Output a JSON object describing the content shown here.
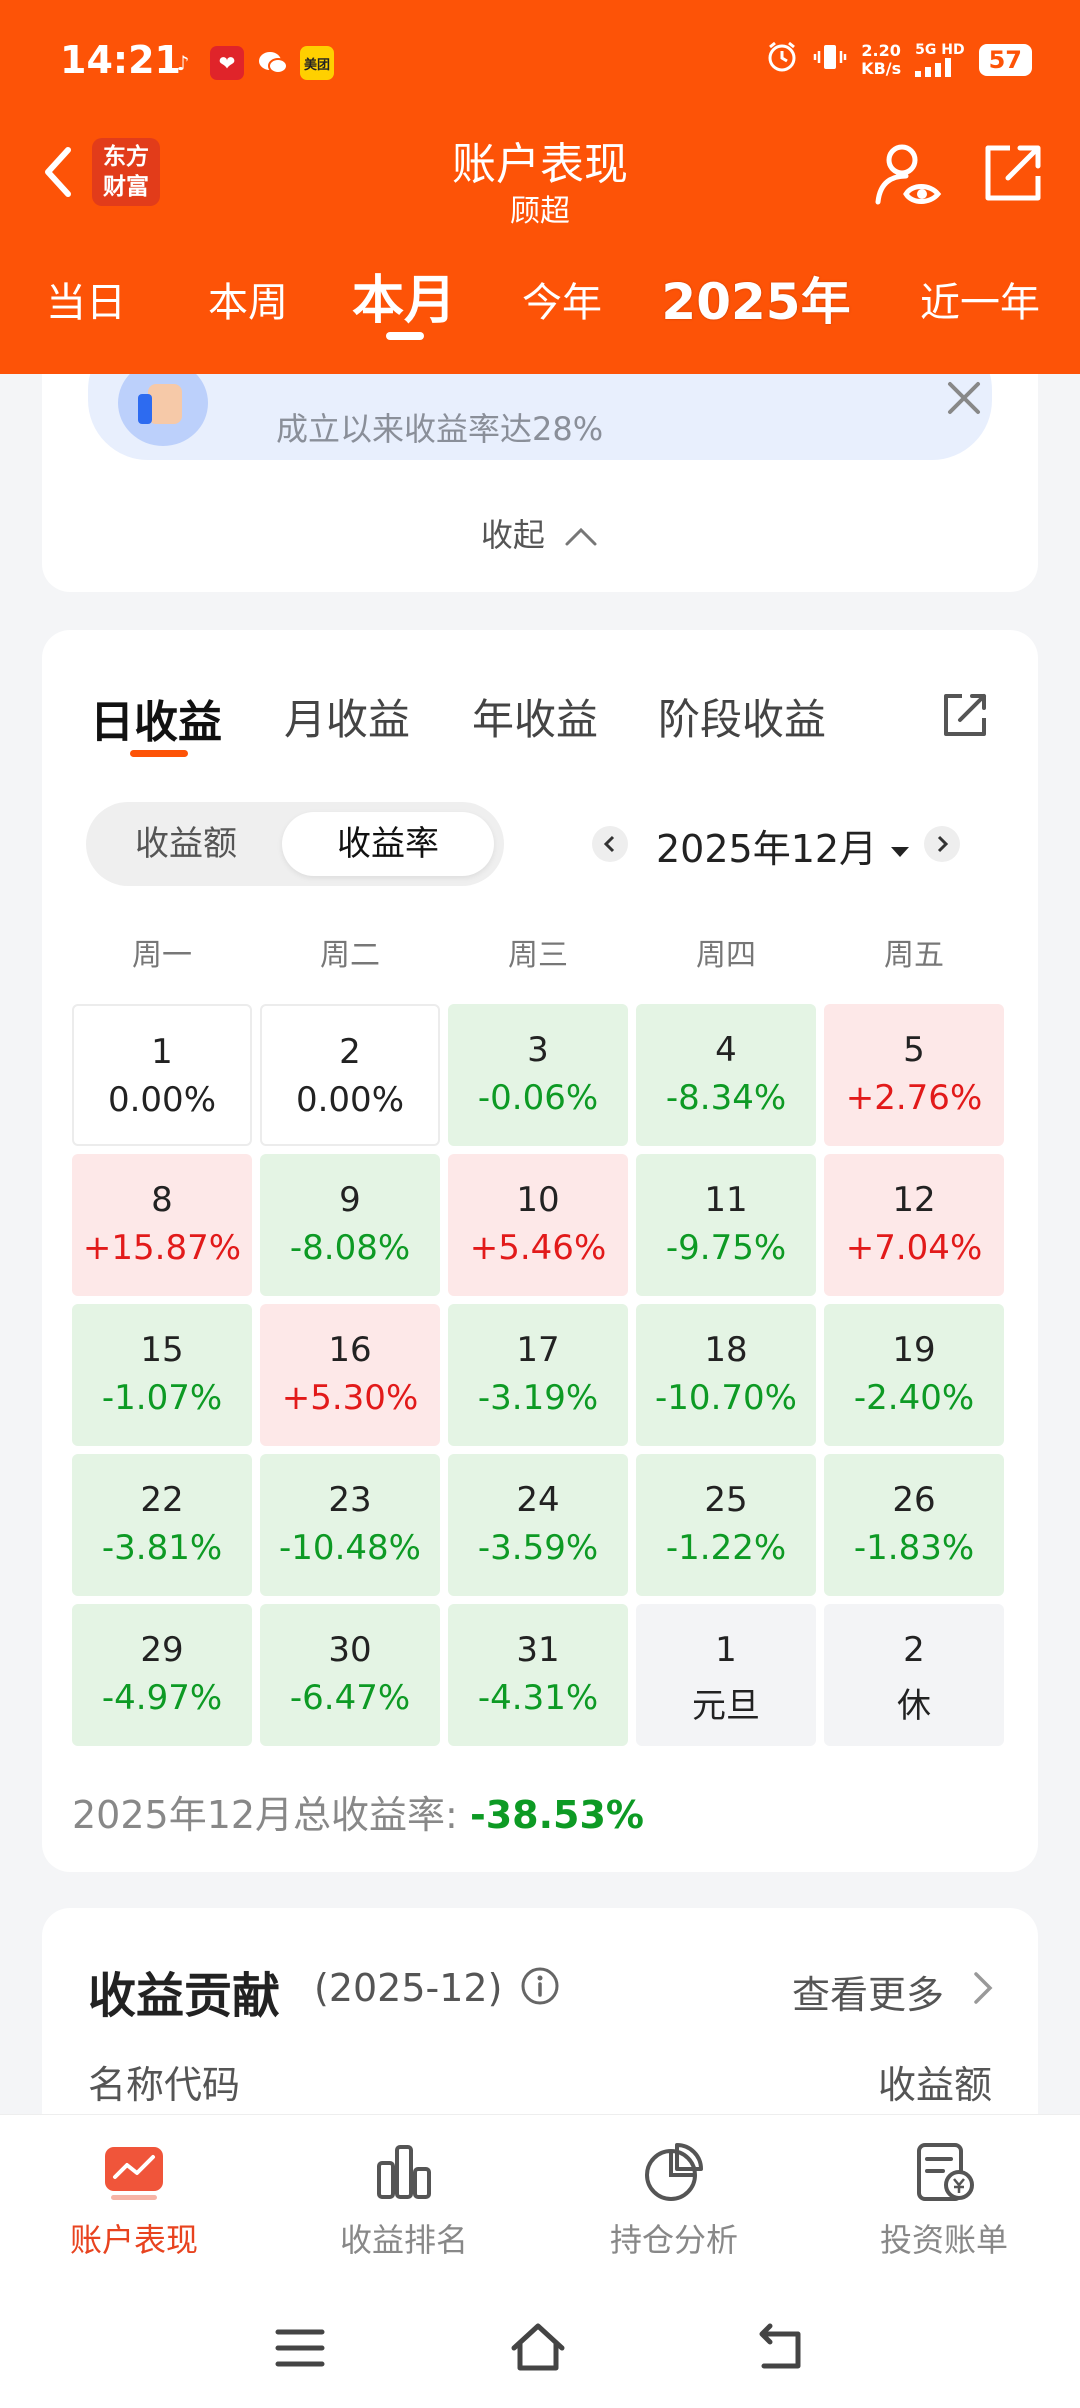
{
  "status_bar": {
    "time": "14:21",
    "app_icons": [
      "music-icon",
      "red-app-icon",
      "wechat-icon",
      "meituan-icon"
    ],
    "meituan_label": "美团",
    "net_speed": "2.20",
    "net_speed_unit": "KB/s",
    "network": "5G HD",
    "battery": "57"
  },
  "nav": {
    "brand": "东方\n财富",
    "title": "账户表现",
    "subtitle": "顾超"
  },
  "period_tabs": [
    "当日",
    "本周",
    "本月",
    "今年",
    "2025年",
    "近一年"
  ],
  "period_tabs_active": "本月",
  "banner": {
    "text": "成立以来收益率达28%"
  },
  "collapse_label": "收起",
  "returns": {
    "tabs": [
      "日收益",
      "月收益",
      "年收益",
      "阶段收益"
    ],
    "active_tab": "日收益",
    "toggle": [
      "收益额",
      "收益率"
    ],
    "toggle_selected": "收益率",
    "month": "2025年12月",
    "weekdays": [
      "周一",
      "周二",
      "周三",
      "周四",
      "周五"
    ],
    "days": [
      {
        "d": "1",
        "v": "0.00%",
        "t": "neutral"
      },
      {
        "d": "2",
        "v": "0.00%",
        "t": "neutral"
      },
      {
        "d": "3",
        "v": "-0.06%",
        "t": "down"
      },
      {
        "d": "4",
        "v": "-8.34%",
        "t": "down"
      },
      {
        "d": "5",
        "v": "+2.76%",
        "t": "up"
      },
      {
        "d": "8",
        "v": "+15.87%",
        "t": "up"
      },
      {
        "d": "9",
        "v": "-8.08%",
        "t": "down"
      },
      {
        "d": "10",
        "v": "+5.46%",
        "t": "up"
      },
      {
        "d": "11",
        "v": "-9.75%",
        "t": "down"
      },
      {
        "d": "12",
        "v": "+7.04%",
        "t": "up"
      },
      {
        "d": "15",
        "v": "-1.07%",
        "t": "down"
      },
      {
        "d": "16",
        "v": "+5.30%",
        "t": "up"
      },
      {
        "d": "17",
        "v": "-3.19%",
        "t": "down"
      },
      {
        "d": "18",
        "v": "-10.70%",
        "t": "down"
      },
      {
        "d": "19",
        "v": "-2.40%",
        "t": "down"
      },
      {
        "d": "22",
        "v": "-3.81%",
        "t": "down"
      },
      {
        "d": "23",
        "v": "-10.48%",
        "t": "down"
      },
      {
        "d": "24",
        "v": "-3.59%",
        "t": "down"
      },
      {
        "d": "25",
        "v": "-1.22%",
        "t": "down"
      },
      {
        "d": "26",
        "v": "-1.83%",
        "t": "down"
      },
      {
        "d": "29",
        "v": "-4.97%",
        "t": "down"
      },
      {
        "d": "30",
        "v": "-6.47%",
        "t": "down"
      },
      {
        "d": "31",
        "v": "-4.31%",
        "t": "down"
      },
      {
        "d": "1",
        "v": "元旦",
        "t": "off"
      },
      {
        "d": "2",
        "v": "休",
        "t": "off"
      }
    ],
    "total_label": "2025年12月总收益率: ",
    "total_value": "-38.53%"
  },
  "contribution": {
    "title": "收益贡献",
    "period": "(2025-12)",
    "more": "查看更多",
    "col_name": "名称代码",
    "col_amount": "收益额"
  },
  "bottom_tabs": [
    {
      "label": "账户表现",
      "icon": "chart-icon",
      "active": true
    },
    {
      "label": "收益排名",
      "icon": "bar-ranking-icon",
      "active": false
    },
    {
      "label": "持仓分析",
      "icon": "pie-chart-icon",
      "active": false
    },
    {
      "label": "投资账单",
      "icon": "bill-icon",
      "active": false
    }
  ],
  "colors": {
    "brand_orange": "#fd5307",
    "up_red": "#e21a1a",
    "down_green": "#0d9a24",
    "up_bg": "#fde8e8",
    "down_bg": "#e4f4e4"
  }
}
